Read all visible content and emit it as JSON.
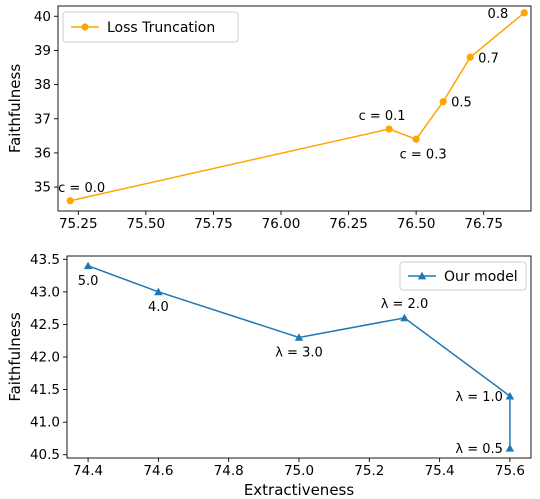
{
  "chart_data": [
    {
      "type": "line",
      "xlabel": "",
      "ylabel": "Faithfulness",
      "xlim": [
        75.175,
        76.925
      ],
      "ylim": [
        34.3,
        40.3
      ],
      "xticks": [
        75.25,
        75.5,
        75.75,
        76.0,
        76.25,
        76.5,
        76.75
      ],
      "xtick_labels": [
        "75.25",
        "75.50",
        "75.75",
        "76.00",
        "76.25",
        "76.50",
        "76.75"
      ],
      "yticks": [
        35,
        36,
        37,
        38,
        39,
        40
      ],
      "ytick_labels": [
        "35",
        "36",
        "37",
        "38",
        "39",
        "40"
      ],
      "grid": false,
      "legend_position": "top-left",
      "series": [
        {
          "name": "Loss Truncation",
          "color": "#ffa500",
          "marker": "circle",
          "x": [
            75.22,
            76.4,
            76.5,
            76.6,
            76.7,
            76.9
          ],
          "y": [
            34.6,
            36.7,
            36.4,
            37.5,
            38.8,
            40.1
          ],
          "point_labels": [
            "c = 0.0",
            "c = 0.1",
            "c = 0.3",
            "0.5",
            "0.7",
            "0.8"
          ]
        }
      ]
    },
    {
      "type": "line",
      "xlabel": "Extractiveness",
      "ylabel": "Faithfulness",
      "xlim": [
        74.34,
        75.66
      ],
      "ylim": [
        40.45,
        43.55
      ],
      "xticks": [
        74.4,
        74.6,
        74.8,
        75.0,
        75.2,
        75.4,
        75.6
      ],
      "xtick_labels": [
        "74.4",
        "74.6",
        "74.8",
        "75.0",
        "75.2",
        "75.4",
        "75.6"
      ],
      "yticks": [
        40.5,
        41.0,
        41.5,
        42.0,
        42.5,
        43.0,
        43.5
      ],
      "ytick_labels": [
        "40.5",
        "41.0",
        "41.5",
        "42.0",
        "42.5",
        "43.0",
        "43.5"
      ],
      "grid": false,
      "legend_position": "top-right",
      "series": [
        {
          "name": "Our model",
          "color": "#1f77b4",
          "marker": "triangle",
          "x": [
            74.4,
            74.6,
            75.0,
            75.3,
            75.6,
            75.6
          ],
          "y": [
            43.4,
            43.0,
            42.3,
            42.6,
            41.4,
            40.6
          ],
          "point_labels": [
            "5.0",
            "4.0",
            "λ = 3.0",
            "λ = 2.0",
            "λ = 1.0",
            "λ = 0.5"
          ]
        }
      ]
    }
  ]
}
